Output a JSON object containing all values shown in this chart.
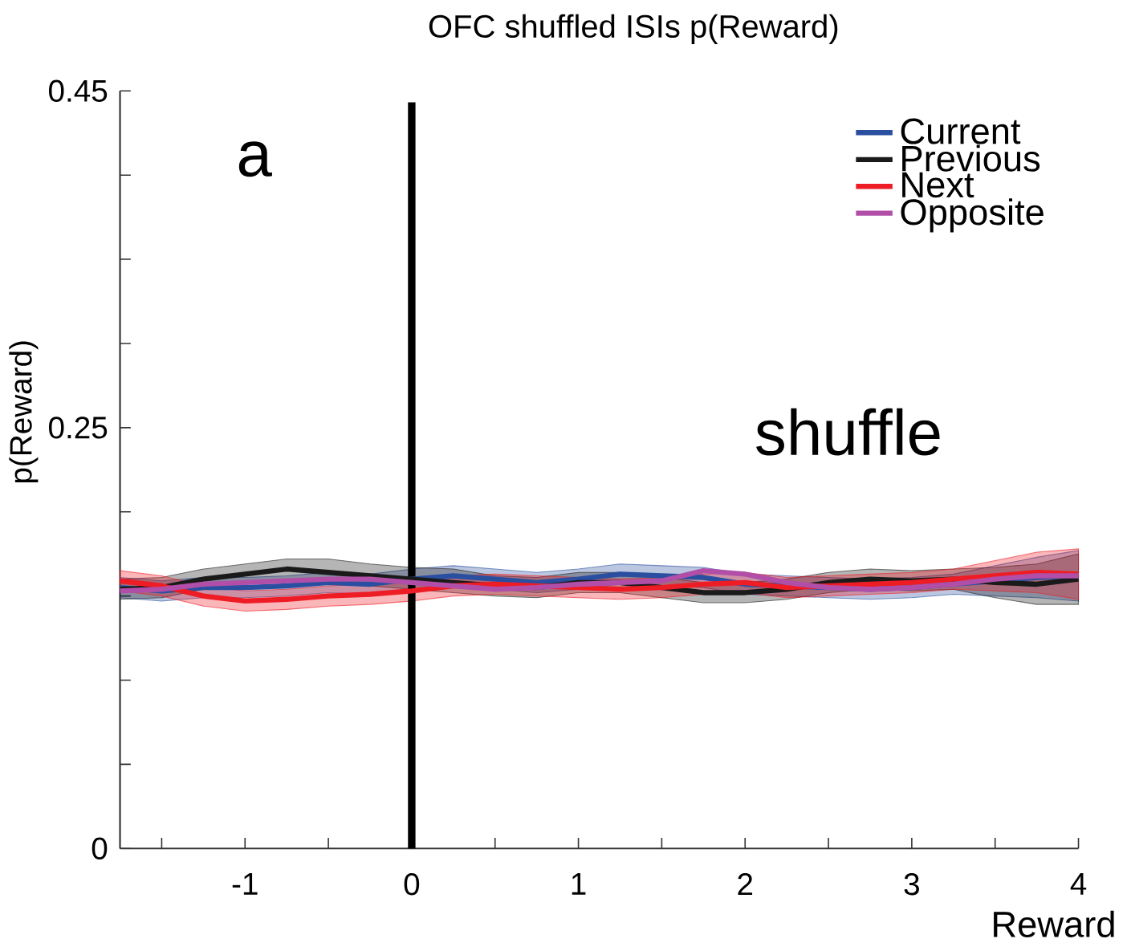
{
  "chart_data": {
    "type": "line",
    "title": "OFC shuffled ISIs p(Reward)",
    "xlabel": "Reward",
    "ylabel": "p(Reward)",
    "annotations": [
      "a",
      "shuffle"
    ],
    "x": [
      -1.75,
      -1.5,
      -1.25,
      -1,
      -0.75,
      -0.5,
      -0.25,
      0,
      0.25,
      0.5,
      0.75,
      1,
      1.25,
      1.5,
      1.75,
      2,
      2.25,
      2.5,
      2.75,
      3,
      3.25,
      3.5,
      3.75,
      4
    ],
    "xlim": [
      -1.75,
      4
    ],
    "xticks": [
      {
        "value": -1.5,
        "label": null
      },
      -1,
      {
        "value": -0.5,
        "label": null
      },
      0,
      {
        "value": 0.5,
        "label": null
      },
      1,
      {
        "value": 1.5,
        "label": null
      },
      2,
      {
        "value": 2.5,
        "label": null
      },
      3,
      {
        "value": 3.5,
        "label": null
      },
      4
    ],
    "ylim": [
      0,
      0.45
    ],
    "yticks": [
      0,
      {
        "value": 0.05,
        "label": null
      },
      {
        "value": 0.1,
        "label": null
      },
      {
        "value": 0.15,
        "label": null
      },
      {
        "value": 0.2,
        "label": null
      },
      0.25,
      {
        "value": 0.3,
        "label": null
      },
      {
        "value": 0.35,
        "label": null
      },
      {
        "value": 0.4,
        "label": null
      },
      0.45
    ],
    "legend": "top right",
    "grid": false,
    "marker": "none",
    "line_style": "solid",
    "ref_lines": [
      {
        "axis": "x",
        "value": 0,
        "color": "#000000"
      }
    ],
    "series": [
      {
        "name": "Current",
        "color": "#2a4fa0",
        "values": [
          0.155,
          0.153,
          0.155,
          0.155,
          0.156,
          0.158,
          0.157,
          0.16,
          0.162,
          0.16,
          0.158,
          0.16,
          0.163,
          0.162,
          0.161,
          0.157,
          0.156,
          0.155,
          0.154,
          0.155,
          0.157,
          0.159,
          0.161,
          0.162
        ],
        "lower": [
          0.149,
          0.147,
          0.149,
          0.149,
          0.15,
          0.152,
          0.151,
          0.154,
          0.156,
          0.154,
          0.152,
          0.154,
          0.157,
          0.156,
          0.155,
          0.151,
          0.15,
          0.149,
          0.148,
          0.149,
          0.151,
          0.15,
          0.149,
          0.147
        ],
        "upper": [
          0.161,
          0.159,
          0.161,
          0.161,
          0.162,
          0.164,
          0.163,
          0.166,
          0.168,
          0.166,
          0.164,
          0.166,
          0.169,
          0.168,
          0.167,
          0.163,
          0.162,
          0.161,
          0.16,
          0.161,
          0.163,
          0.168,
          0.173,
          0.177
        ]
      },
      {
        "name": "Previous",
        "color": "#1a1a1a",
        "values": [
          0.154,
          0.155,
          0.16,
          0.163,
          0.166,
          0.164,
          0.162,
          0.16,
          0.158,
          0.156,
          0.155,
          0.158,
          0.158,
          0.155,
          0.152,
          0.152,
          0.154,
          0.158,
          0.16,
          0.159,
          0.16,
          0.158,
          0.157,
          0.16
        ],
        "lower": [
          0.148,
          0.149,
          0.154,
          0.157,
          0.16,
          0.158,
          0.156,
          0.154,
          0.152,
          0.15,
          0.149,
          0.152,
          0.152,
          0.149,
          0.146,
          0.146,
          0.148,
          0.152,
          0.154,
          0.153,
          0.154,
          0.149,
          0.145,
          0.145
        ],
        "upper": [
          0.16,
          0.161,
          0.166,
          0.169,
          0.172,
          0.172,
          0.169,
          0.167,
          0.166,
          0.162,
          0.161,
          0.164,
          0.164,
          0.161,
          0.158,
          0.158,
          0.16,
          0.164,
          0.166,
          0.165,
          0.166,
          0.167,
          0.169,
          0.175
        ]
      },
      {
        "name": "Next",
        "color": "#ee1c25",
        "values": [
          0.159,
          0.156,
          0.15,
          0.147,
          0.148,
          0.15,
          0.151,
          0.153,
          0.156,
          0.157,
          0.156,
          0.155,
          0.154,
          0.155,
          0.157,
          0.158,
          0.155,
          0.156,
          0.157,
          0.158,
          0.16,
          0.162,
          0.164,
          0.163
        ],
        "lower": [
          0.153,
          0.15,
          0.144,
          0.141,
          0.142,
          0.144,
          0.145,
          0.147,
          0.15,
          0.151,
          0.15,
          0.149,
          0.148,
          0.149,
          0.151,
          0.152,
          0.149,
          0.15,
          0.151,
          0.152,
          0.154,
          0.153,
          0.152,
          0.148
        ],
        "upper": [
          0.165,
          0.162,
          0.156,
          0.153,
          0.154,
          0.156,
          0.157,
          0.159,
          0.162,
          0.163,
          0.162,
          0.161,
          0.16,
          0.161,
          0.163,
          0.164,
          0.161,
          0.162,
          0.163,
          0.164,
          0.166,
          0.171,
          0.176,
          0.178
        ]
      },
      {
        "name": "Opposite",
        "color": "#b14fa8",
        "values": [
          0.153,
          0.154,
          0.157,
          0.158,
          0.159,
          0.16,
          0.16,
          0.158,
          0.156,
          0.154,
          0.155,
          0.157,
          0.158,
          0.159,
          0.165,
          0.163,
          0.158,
          0.155,
          0.154,
          0.155,
          0.157,
          0.16,
          0.162,
          0.162
        ]
      }
    ]
  }
}
